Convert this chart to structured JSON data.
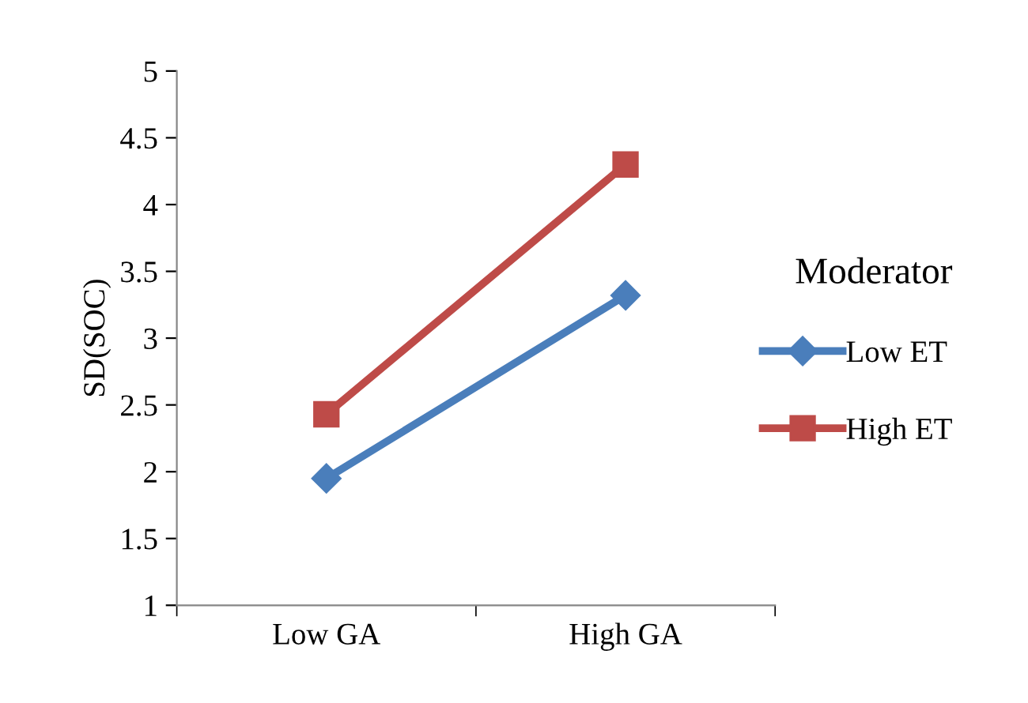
{
  "chart_data": {
    "type": "line",
    "ylabel": "SD(SOC)",
    "legend_title": "Moderator",
    "categories": [
      "Low GA",
      "High GA"
    ],
    "series": [
      {
        "name": "Low ET",
        "color": "#4a7ebb",
        "values": [
          1.95,
          3.32
        ],
        "marker": "diamond"
      },
      {
        "name": "High ET",
        "color": "#be4b48",
        "values": [
          2.43,
          4.3
        ],
        "marker": "square"
      }
    ],
    "ylim": [
      1,
      5
    ],
    "yticks": [
      1,
      1.5,
      2,
      2.5,
      3,
      3.5,
      4,
      4.5,
      5
    ],
    "grid": false,
    "legend": "right",
    "line_style": "solid"
  }
}
